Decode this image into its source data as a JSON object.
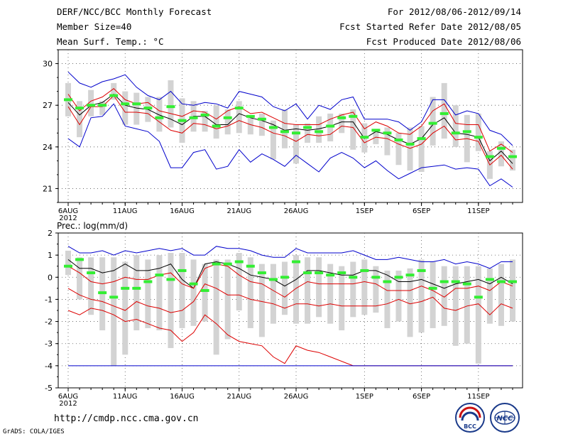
{
  "header": {
    "title": "DERF/NCC/BCC Monthly Forecast",
    "member_size": "Member Size=40",
    "variable": "Mean Surf. Temp.: °C",
    "period": "For 2012/08/06-2012/09/14",
    "started": "Fcst Started Refer Date 2012/08/05",
    "produced": "Fcst Produced Date 2012/08/06"
  },
  "footer": {
    "url": "http://cmdp.ncc.cma.gov.cn",
    "credit": "GrADS: COLA/IGES",
    "logo_bcc_text": "BCC",
    "logo_ncc_text": "NCC"
  },
  "colors": {
    "box": "#d3d3d3",
    "outer": "#0000cc",
    "inner": "#dd0000",
    "median": "#000000",
    "marker": "#33ee33",
    "grid": "#000000"
  },
  "chart_data": [
    {
      "type": "line",
      "title": "Mean Surf. Temp.: °C",
      "ylim": [
        20,
        31
      ],
      "yticks": [
        21,
        24,
        27,
        30
      ],
      "x_ticks": [
        {
          "day": 0,
          "label": "6AUG"
        },
        {
          "day": 5,
          "label": "11AUG"
        },
        {
          "day": 10,
          "label": "16AUG"
        },
        {
          "day": 15,
          "label": "21AUG"
        },
        {
          "day": 20,
          "label": "26AUG"
        },
        {
          "day": 26,
          "label": "1SEP"
        },
        {
          "day": 31,
          "label": "6SEP"
        },
        {
          "day": 36,
          "label": "11SEP"
        }
      ],
      "year_label": "2012",
      "series": [
        {
          "name": "max",
          "role": "outer",
          "values": [
            29.4,
            28.6,
            28.3,
            28.7,
            28.9,
            29.2,
            28.3,
            27.7,
            27.4,
            28.0,
            27.1,
            27.0,
            27.2,
            27.1,
            26.8,
            28.0,
            27.8,
            27.6,
            26.9,
            26.6,
            27.1,
            26.0,
            27.0,
            26.7,
            27.4,
            27.6,
            26.0,
            26.0,
            26.0,
            25.8,
            25.2,
            25.8,
            27.4,
            27.4,
            26.3,
            26.6,
            26.4,
            25.2,
            24.9,
            24.1
          ]
        },
        {
          "name": "p75",
          "role": "inner",
          "values": [
            27.8,
            26.6,
            27.3,
            27.6,
            28.2,
            27.4,
            27.1,
            27.2,
            26.6,
            26.4,
            26.2,
            26.6,
            26.5,
            26.0,
            26.6,
            26.9,
            26.4,
            26.5,
            26.1,
            25.7,
            25.6,
            25.6,
            25.6,
            26.0,
            26.3,
            26.5,
            25.3,
            25.8,
            25.5,
            25.0,
            24.9,
            25.5,
            26.6,
            27.1,
            25.7,
            25.6,
            25.6,
            23.7,
            24.2,
            23.6
          ]
        },
        {
          "name": "median",
          "role": "median",
          "values": [
            27.2,
            26.3,
            27.0,
            27.2,
            27.8,
            27.0,
            26.8,
            26.7,
            26.3,
            26.0,
            25.6,
            26.2,
            26.2,
            25.6,
            25.6,
            26.4,
            26.1,
            25.9,
            25.6,
            25.2,
            25.3,
            25.2,
            25.3,
            25.5,
            25.8,
            25.8,
            24.6,
            25.1,
            24.9,
            24.5,
            24.2,
            24.6,
            25.6,
            26.1,
            25.0,
            24.9,
            24.7,
            23.0,
            23.7,
            22.8
          ]
        },
        {
          "name": "p25",
          "role": "inner",
          "values": [
            26.9,
            25.6,
            26.9,
            26.9,
            27.7,
            26.5,
            26.5,
            26.4,
            25.8,
            25.2,
            25.0,
            25.7,
            25.6,
            25.3,
            25.5,
            25.9,
            25.6,
            25.4,
            25.0,
            24.8,
            24.4,
            24.9,
            24.8,
            24.9,
            25.5,
            25.4,
            24.3,
            24.7,
            24.6,
            24.2,
            23.9,
            24.2,
            25.0,
            25.5,
            24.5,
            24.6,
            24.4,
            22.7,
            23.4,
            22.4
          ]
        },
        {
          "name": "min",
          "role": "outer",
          "values": [
            24.6,
            24.0,
            26.1,
            26.2,
            27.1,
            25.5,
            25.3,
            25.1,
            24.4,
            22.5,
            22.5,
            23.6,
            23.8,
            22.4,
            22.6,
            23.8,
            22.9,
            23.5,
            23.1,
            22.6,
            23.4,
            22.8,
            22.2,
            23.2,
            23.6,
            23.2,
            22.5,
            23.0,
            22.3,
            21.7,
            22.1,
            22.5,
            22.6,
            22.7,
            22.4,
            22.5,
            22.4,
            21.2,
            21.7,
            21.1
          ]
        },
        {
          "name": "box_top",
          "role": "box",
          "values": [
            28.6,
            27.3,
            28.1,
            27.3,
            28.6,
            28.0,
            27.9,
            27.6,
            27.6,
            28.8,
            27.5,
            27.3,
            26.6,
            27.0,
            26.7,
            27.3,
            26.1,
            26.4,
            25.9,
            26.7,
            25.6,
            25.7,
            26.2,
            26.4,
            26.4,
            26.7,
            25.7,
            25.3,
            25.4,
            25.0,
            25.4,
            25.5,
            27.6,
            28.6,
            27.0,
            26.3,
            26.4,
            23.7,
            24.4,
            23.8
          ]
        },
        {
          "name": "box_bottom",
          "role": "box",
          "values": [
            26.2,
            24.7,
            26.2,
            26.3,
            27.4,
            25.6,
            25.6,
            25.8,
            25.1,
            25.4,
            24.3,
            25.1,
            25.1,
            24.6,
            24.9,
            25.0,
            24.9,
            24.8,
            23.1,
            23.9,
            22.8,
            24.3,
            24.3,
            24.4,
            25.0,
            23.8,
            23.6,
            24.2,
            23.4,
            22.7,
            22.3,
            22.2,
            24.1,
            24.6,
            24.0,
            22.9,
            23.7,
            21.7,
            22.6,
            22.3
          ]
        },
        {
          "name": "observed",
          "role": "marker",
          "values": [
            27.4,
            26.8,
            27.0,
            27.0,
            27.7,
            27.1,
            27.1,
            26.8,
            26.1,
            26.9,
            25.9,
            26.1,
            26.3,
            25.5,
            26.1,
            26.8,
            26.2,
            26.0,
            25.4,
            25.1,
            25.0,
            25.4,
            25.1,
            25.5,
            26.1,
            26.2,
            24.7,
            25.2,
            25.0,
            24.5,
            24.2,
            24.6,
            25.7,
            26.4,
            25.0,
            25.1,
            24.7,
            23.3,
            23.9,
            23.3
          ]
        }
      ]
    },
    {
      "type": "line",
      "title": "Prec.: log(mm/d)",
      "ylim": [
        -5,
        2
      ],
      "yticks": [
        -5,
        -4,
        -3,
        -2,
        -1,
        0,
        1,
        2
      ],
      "x_ticks": [
        {
          "day": 0,
          "label": "6AUG"
        },
        {
          "day": 5,
          "label": "11AUG"
        },
        {
          "day": 10,
          "label": "16AUG"
        },
        {
          "day": 15,
          "label": "21AUG"
        },
        {
          "day": 20,
          "label": "26AUG"
        },
        {
          "day": 26,
          "label": "1SEP"
        },
        {
          "day": 31,
          "label": "6SEP"
        },
        {
          "day": 36,
          "label": "11SEP"
        }
      ],
      "year_label": "2012",
      "series": [
        {
          "name": "max",
          "role": "outer",
          "values": [
            1.4,
            1.1,
            1.1,
            1.2,
            1.0,
            1.2,
            1.1,
            1.2,
            1.3,
            1.2,
            1.3,
            1.0,
            1.0,
            1.4,
            1.3,
            1.3,
            1.2,
            1.0,
            0.9,
            0.9,
            1.3,
            1.1,
            1.1,
            1.1,
            1.1,
            1.2,
            1.0,
            0.8,
            0.8,
            0.9,
            0.8,
            0.7,
            0.7,
            0.8,
            0.6,
            0.7,
            0.6,
            0.4,
            0.7,
            0.7
          ]
        },
        {
          "name": "median",
          "role": "median",
          "values": [
            0.8,
            0.4,
            0.4,
            0.2,
            0.3,
            0.6,
            0.3,
            0.3,
            0.4,
            0.6,
            -0.1,
            -0.5,
            0.6,
            0.7,
            0.6,
            0.4,
            0.1,
            0.0,
            -0.1,
            -0.4,
            -0.1,
            0.3,
            0.3,
            0.2,
            0.1,
            0.1,
            0.3,
            0.3,
            0.1,
            -0.2,
            -0.2,
            -0.1,
            -0.3,
            -0.5,
            -0.3,
            -0.2,
            -0.1,
            -0.3,
            0.0,
            -0.3
          ]
        },
        {
          "name": "p25",
          "role": "inner",
          "values": [
            0.5,
            0.2,
            -0.2,
            -0.3,
            -0.2,
            0.0,
            -0.1,
            -0.1,
            0.1,
            0.2,
            -0.3,
            -0.5,
            0.4,
            0.6,
            0.5,
            0.1,
            -0.2,
            -0.3,
            -0.6,
            -0.9,
            -0.5,
            -0.2,
            -0.3,
            -0.3,
            -0.3,
            -0.3,
            -0.2,
            -0.3,
            -0.6,
            -0.6,
            -0.6,
            -0.4,
            -0.6,
            -0.9,
            -0.5,
            -0.5,
            -0.4,
            -0.6,
            -0.2,
            -0.4
          ]
        },
        {
          "name": "p10",
          "role": "inner",
          "values": [
            -0.5,
            -0.8,
            -1.0,
            -1.1,
            -1.3,
            -1.5,
            -1.1,
            -1.3,
            -1.4,
            -1.6,
            -1.5,
            -1.1,
            -0.3,
            -0.5,
            -0.8,
            -0.8,
            -1.0,
            -1.1,
            -1.2,
            -1.4,
            -1.2,
            -1.2,
            -1.3,
            -1.2,
            -1.3,
            -1.3,
            -1.3,
            -1.3,
            -1.2,
            -1.0,
            -1.2,
            -1.1,
            -0.9,
            -1.4,
            -1.5,
            -1.3,
            -1.2,
            -1.7,
            -1.2,
            -1.4
          ]
        },
        {
          "name": "p5",
          "role": "inner",
          "values": [
            -1.5,
            -1.7,
            -1.4,
            -1.5,
            -1.7,
            -2.0,
            -1.9,
            -2.1,
            -2.3,
            -2.4,
            -2.9,
            -2.5,
            -1.7,
            -2.1,
            -2.6,
            -2.9,
            -3.0,
            -3.1,
            -3.6,
            -3.9,
            -3.1,
            -3.3,
            -3.4,
            -3.6,
            -3.8,
            -4.0,
            -4.0,
            -4.0,
            -4.0,
            -4.0,
            -4.0,
            -4.0,
            -4.0,
            -4.0,
            -4.0,
            -4.0,
            -4.0,
            -4.0,
            -4.0,
            -4.0
          ]
        },
        {
          "name": "min",
          "role": "outer",
          "values": [
            -4.0,
            -4.0,
            -4.0,
            -4.0,
            -4.0,
            -4.0,
            -4.0,
            -4.0,
            -4.0,
            -4.0,
            -4.0,
            -4.0,
            -4.0,
            -4.0,
            -4.0,
            -4.0,
            -4.0,
            -4.0,
            -4.0,
            -4.0,
            -4.0,
            -4.0,
            -4.0,
            -4.0,
            -4.0,
            -4.0,
            -4.0,
            -4.0,
            -4.0,
            -4.0,
            -4.0,
            -4.0,
            -4.0,
            -4.0,
            -4.0,
            -4.0,
            -4.0,
            -4.0,
            -4.0,
            -4.0
          ]
        },
        {
          "name": "box_top",
          "role": "box",
          "values": [
            1.2,
            0.9,
            0.9,
            0.9,
            0.9,
            0.7,
            1.0,
            0.8,
            1.0,
            1.1,
            1.1,
            0.8,
            0.6,
            0.8,
            0.8,
            1.1,
            0.9,
            0.6,
            0.6,
            0.7,
            1.0,
            0.9,
            0.9,
            0.6,
            0.5,
            0.7,
            0.8,
            0.5,
            0.3,
            0.3,
            0.4,
            0.8,
            0.7,
            0.5,
            0.5,
            0.5,
            0.5,
            0.4,
            0.6,
            0.8
          ]
        },
        {
          "name": "box_bottom",
          "role": "box",
          "values": [
            0.1,
            -1.0,
            -1.7,
            -2.4,
            -4.0,
            -3.5,
            -2.4,
            -2.3,
            -2.4,
            -3.2,
            -2.3,
            -2.2,
            -2.0,
            -3.5,
            -2.8,
            -1.5,
            -2.3,
            -2.7,
            -2.1,
            -1.7,
            -2.1,
            -2.1,
            -1.8,
            -2.1,
            -2.4,
            -1.8,
            -1.7,
            -1.6,
            -2.3,
            -2.0,
            -2.7,
            -2.5,
            -2.3,
            -2.2,
            -3.1,
            -3.0,
            -3.9,
            -2.1,
            -2.2,
            -2.0
          ]
        },
        {
          "name": "observed",
          "role": "marker",
          "values": [
            0.5,
            0.8,
            0.2,
            -0.7,
            -0.9,
            -0.5,
            -0.5,
            -0.2,
            0.1,
            -0.1,
            0.3,
            -0.3,
            -0.6,
            0.6,
            0.6,
            0.7,
            0.5,
            0.2,
            -0.1,
            0.0,
            0.7,
            0.2,
            0.2,
            0.1,
            0.2,
            0.0,
            0.3,
            0.0,
            -0.2,
            0.0,
            0.1,
            0.3,
            -0.5,
            -0.2,
            -0.2,
            -0.3,
            -0.9,
            -0.1,
            -0.2,
            -0.2
          ]
        }
      ]
    }
  ]
}
